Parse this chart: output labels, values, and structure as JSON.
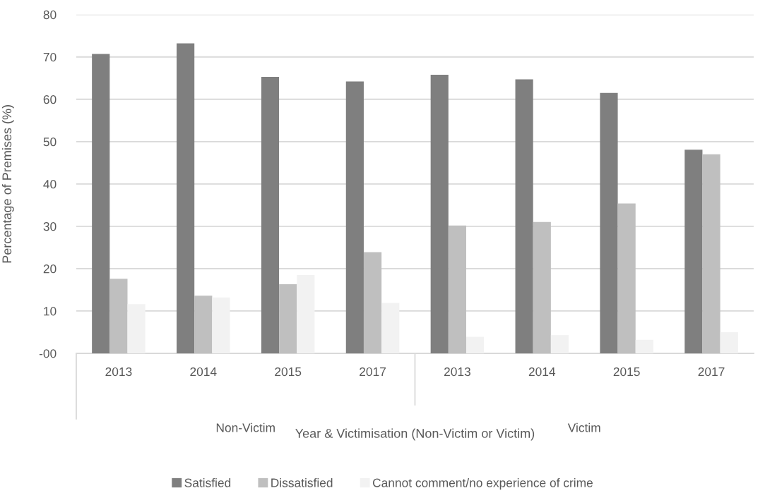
{
  "chart_data": {
    "type": "bar",
    "categories": [
      "2013",
      "2014",
      "2015",
      "2017",
      "2013",
      "2014",
      "2015",
      "2017"
    ],
    "series": [
      {
        "name": "Satisfied",
        "color": "#7f7f7f",
        "values": [
          70.7,
          73.2,
          65.3,
          64.2,
          65.8,
          64.7,
          61.5,
          48.1
        ]
      },
      {
        "name": "Dissatisfied",
        "color": "#bfbfbf",
        "values": [
          17.6,
          13.6,
          16.3,
          23.9,
          30.2,
          31.0,
          35.4,
          47.0
        ]
      },
      {
        "name": "Cannot comment/no experience of crime",
        "color": "#f2f2f2",
        "values": [
          11.6,
          13.2,
          18.5,
          11.9,
          3.9,
          4.3,
          3.2,
          5.0
        ]
      }
    ],
    "ylabel": "Percentage of Premises (%)",
    "xlabel": "Year & Victimisation (Non-Victim or Victim)",
    "annotations": [
      "Non-Victim",
      "Victim"
    ],
    "ylim": [
      0,
      80
    ],
    "yticks": [
      {
        "value": 0,
        "label": "-00"
      },
      10,
      20,
      30,
      40,
      50,
      60,
      70,
      80
    ],
    "grid": "y",
    "legend": "bottom"
  }
}
